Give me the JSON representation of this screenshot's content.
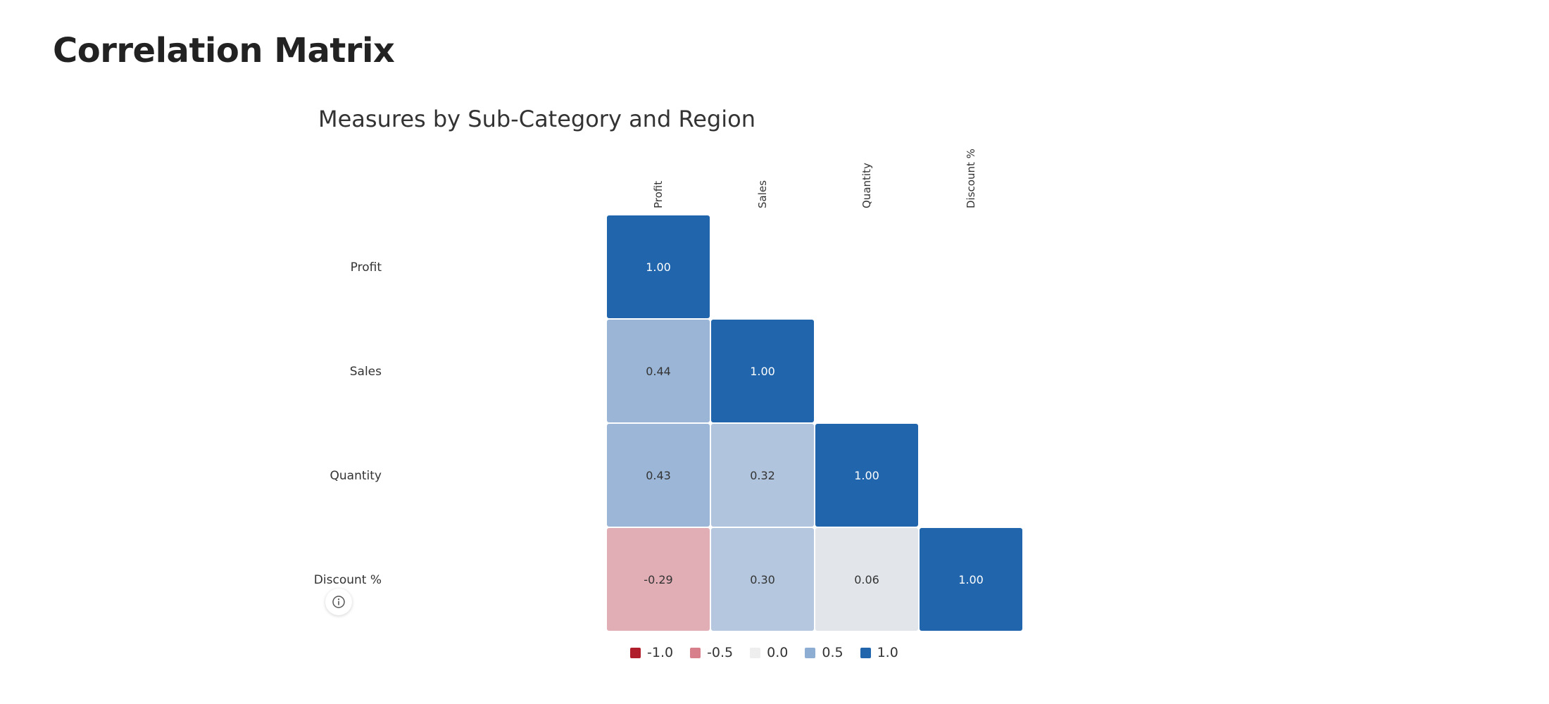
{
  "page": {
    "title": "Correlation Matrix"
  },
  "chart_data": {
    "type": "heatmap",
    "title": "Measures by Sub-Category and Region",
    "rows": [
      "Profit",
      "Sales",
      "Quantity",
      "Discount %"
    ],
    "columns": [
      "Profit",
      "Sales",
      "Quantity",
      "Discount %"
    ],
    "matrix": [
      [
        "1.00",
        null,
        null,
        null
      ],
      [
        "0.44",
        "1.00",
        null,
        null
      ],
      [
        "0.43",
        "0.32",
        "1.00",
        null
      ],
      [
        "-0.29",
        "0.30",
        "0.06",
        "1.00"
      ]
    ],
    "color_scale": {
      "min": -1.0,
      "max": 1.0,
      "colors": {
        "-1.0": "#b11e2b",
        "-0.5": "#d87f8c",
        "0.0": "#eeeeee",
        "0.5": "#8eadd3",
        "1.0": "#2166ac"
      }
    },
    "legend": {
      "placement": "bottom",
      "items": [
        {
          "label": "-1.0",
          "color": "#b11e2b"
        },
        {
          "label": "-0.5",
          "color": "#d87f8c"
        },
        {
          "label": "0.0",
          "color": "#eeeeee"
        },
        {
          "label": "0.5",
          "color": "#8eadd3"
        },
        {
          "label": "1.0",
          "color": "#2166ac"
        }
      ]
    }
  },
  "controls": {
    "info_icon": "info-circle-icon"
  }
}
